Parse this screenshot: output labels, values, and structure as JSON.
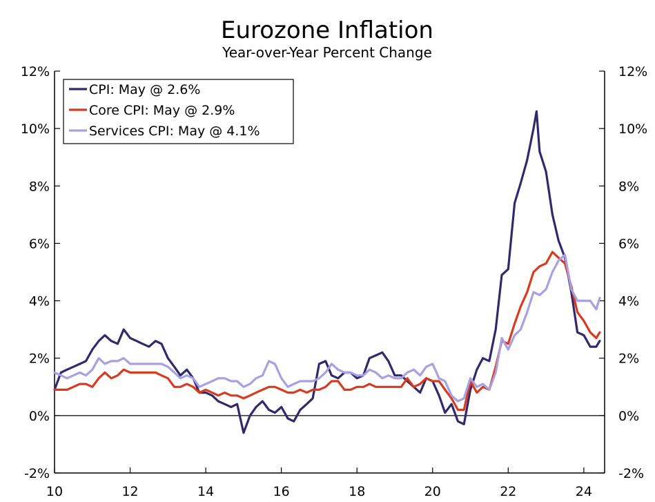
{
  "chart_data": {
    "type": "line",
    "title": "Eurozone Inflation",
    "subtitle": "Year-over-Year Percent Change",
    "xlabel": "",
    "ylabel": "",
    "xlim": [
      2010.0,
      2024.55
    ],
    "ylim": [
      -2,
      12
    ],
    "grid": false,
    "legend_position": "top-left",
    "x_ticks": [
      {
        "value": 2010,
        "label": "10"
      },
      {
        "value": 2012,
        "label": "12"
      },
      {
        "value": 2014,
        "label": "14"
      },
      {
        "value": 2016,
        "label": "16"
      },
      {
        "value": 2018,
        "label": "18"
      },
      {
        "value": 2020,
        "label": "20"
      },
      {
        "value": 2022,
        "label": "22"
      },
      {
        "value": 2024,
        "label": "24"
      }
    ],
    "y_ticks": [
      {
        "value": 12,
        "label": "12%"
      },
      {
        "value": 10,
        "label": "10%"
      },
      {
        "value": 8,
        "label": "8%"
      },
      {
        "value": 6,
        "label": "6%"
      },
      {
        "value": 4,
        "label": "4%"
      },
      {
        "value": 2,
        "label": "2%"
      },
      {
        "value": 0,
        "label": "0%"
      },
      {
        "value": -2,
        "label": "-2%"
      }
    ],
    "series": [
      {
        "name": "CPI: May @ 2.6%",
        "color": "#2f2a6b",
        "points": [
          [
            2010.0,
            0.9
          ],
          [
            2010.17,
            1.5
          ],
          [
            2010.33,
            1.6
          ],
          [
            2010.5,
            1.7
          ],
          [
            2010.67,
            1.8
          ],
          [
            2010.83,
            1.9
          ],
          [
            2011.0,
            2.3
          ],
          [
            2011.17,
            2.6
          ],
          [
            2011.33,
            2.8
          ],
          [
            2011.5,
            2.6
          ],
          [
            2011.67,
            2.5
          ],
          [
            2011.83,
            3.0
          ],
          [
            2012.0,
            2.7
          ],
          [
            2012.17,
            2.6
          ],
          [
            2012.33,
            2.5
          ],
          [
            2012.5,
            2.4
          ],
          [
            2012.67,
            2.6
          ],
          [
            2012.83,
            2.5
          ],
          [
            2013.0,
            2.0
          ],
          [
            2013.17,
            1.7
          ],
          [
            2013.33,
            1.4
          ],
          [
            2013.5,
            1.6
          ],
          [
            2013.67,
            1.3
          ],
          [
            2013.83,
            0.8
          ],
          [
            2014.0,
            0.8
          ],
          [
            2014.17,
            0.7
          ],
          [
            2014.33,
            0.5
          ],
          [
            2014.5,
            0.4
          ],
          [
            2014.67,
            0.3
          ],
          [
            2014.83,
            0.4
          ],
          [
            2015.0,
            -0.6
          ],
          [
            2015.17,
            0.0
          ],
          [
            2015.33,
            0.3
          ],
          [
            2015.5,
            0.5
          ],
          [
            2015.67,
            0.2
          ],
          [
            2015.83,
            0.1
          ],
          [
            2016.0,
            0.3
          ],
          [
            2016.17,
            -0.1
          ],
          [
            2016.33,
            -0.2
          ],
          [
            2016.5,
            0.2
          ],
          [
            2016.67,
            0.4
          ],
          [
            2016.83,
            0.6
          ],
          [
            2017.0,
            1.8
          ],
          [
            2017.17,
            1.9
          ],
          [
            2017.33,
            1.4
          ],
          [
            2017.5,
            1.3
          ],
          [
            2017.67,
            1.5
          ],
          [
            2017.83,
            1.5
          ],
          [
            2018.0,
            1.3
          ],
          [
            2018.17,
            1.4
          ],
          [
            2018.33,
            2.0
          ],
          [
            2018.5,
            2.1
          ],
          [
            2018.67,
            2.2
          ],
          [
            2018.83,
            1.9
          ],
          [
            2019.0,
            1.4
          ],
          [
            2019.17,
            1.4
          ],
          [
            2019.33,
            1.2
          ],
          [
            2019.5,
            1.0
          ],
          [
            2019.67,
            0.8
          ],
          [
            2019.83,
            1.3
          ],
          [
            2020.0,
            1.2
          ],
          [
            2020.17,
            0.7
          ],
          [
            2020.33,
            0.1
          ],
          [
            2020.5,
            0.4
          ],
          [
            2020.67,
            -0.2
          ],
          [
            2020.83,
            -0.3
          ],
          [
            2021.0,
            0.9
          ],
          [
            2021.17,
            1.6
          ],
          [
            2021.33,
            2.0
          ],
          [
            2021.5,
            1.9
          ],
          [
            2021.67,
            3.0
          ],
          [
            2021.83,
            4.9
          ],
          [
            2022.0,
            5.1
          ],
          [
            2022.17,
            7.4
          ],
          [
            2022.33,
            8.1
          ],
          [
            2022.5,
            8.9
          ],
          [
            2022.67,
            10.0
          ],
          [
            2022.75,
            10.6
          ],
          [
            2022.83,
            9.2
          ],
          [
            2023.0,
            8.5
          ],
          [
            2023.17,
            7.0
          ],
          [
            2023.33,
            6.1
          ],
          [
            2023.5,
            5.5
          ],
          [
            2023.67,
            4.3
          ],
          [
            2023.83,
            2.9
          ],
          [
            2024.0,
            2.8
          ],
          [
            2024.17,
            2.4
          ],
          [
            2024.33,
            2.4
          ],
          [
            2024.42,
            2.6
          ]
        ]
      },
      {
        "name": "Core CPI: May @ 2.9%",
        "color": "#d83a20",
        "points": [
          [
            2010.0,
            0.9
          ],
          [
            2010.17,
            0.9
          ],
          [
            2010.33,
            0.9
          ],
          [
            2010.5,
            1.0
          ],
          [
            2010.67,
            1.1
          ],
          [
            2010.83,
            1.1
          ],
          [
            2011.0,
            1.0
          ],
          [
            2011.17,
            1.3
          ],
          [
            2011.33,
            1.5
          ],
          [
            2011.5,
            1.3
          ],
          [
            2011.67,
            1.4
          ],
          [
            2011.83,
            1.6
          ],
          [
            2012.0,
            1.5
          ],
          [
            2012.17,
            1.5
          ],
          [
            2012.33,
            1.5
          ],
          [
            2012.5,
            1.5
          ],
          [
            2012.67,
            1.5
          ],
          [
            2012.83,
            1.4
          ],
          [
            2013.0,
            1.3
          ],
          [
            2013.17,
            1.0
          ],
          [
            2013.33,
            1.0
          ],
          [
            2013.5,
            1.1
          ],
          [
            2013.67,
            1.0
          ],
          [
            2013.83,
            0.8
          ],
          [
            2014.0,
            0.9
          ],
          [
            2014.17,
            0.8
          ],
          [
            2014.33,
            0.7
          ],
          [
            2014.5,
            0.8
          ],
          [
            2014.67,
            0.7
          ],
          [
            2014.83,
            0.7
          ],
          [
            2015.0,
            0.6
          ],
          [
            2015.17,
            0.7
          ],
          [
            2015.33,
            0.8
          ],
          [
            2015.5,
            0.9
          ],
          [
            2015.67,
            1.0
          ],
          [
            2015.83,
            1.0
          ],
          [
            2016.0,
            0.9
          ],
          [
            2016.17,
            0.8
          ],
          [
            2016.33,
            0.8
          ],
          [
            2016.5,
            0.9
          ],
          [
            2016.67,
            0.8
          ],
          [
            2016.83,
            0.9
          ],
          [
            2017.0,
            0.9
          ],
          [
            2017.17,
            1.0
          ],
          [
            2017.33,
            1.2
          ],
          [
            2017.5,
            1.2
          ],
          [
            2017.67,
            0.9
          ],
          [
            2017.83,
            0.9
          ],
          [
            2018.0,
            1.0
          ],
          [
            2018.17,
            1.0
          ],
          [
            2018.33,
            1.1
          ],
          [
            2018.5,
            1.0
          ],
          [
            2018.67,
            1.0
          ],
          [
            2018.83,
            1.0
          ],
          [
            2019.0,
            1.0
          ],
          [
            2019.17,
            1.0
          ],
          [
            2019.33,
            1.3
          ],
          [
            2019.5,
            1.0
          ],
          [
            2019.67,
            1.1
          ],
          [
            2019.83,
            1.3
          ],
          [
            2020.0,
            1.2
          ],
          [
            2020.17,
            1.2
          ],
          [
            2020.33,
            0.9
          ],
          [
            2020.5,
            0.6
          ],
          [
            2020.67,
            0.2
          ],
          [
            2020.83,
            0.2
          ],
          [
            2021.0,
            1.2
          ],
          [
            2021.17,
            0.8
          ],
          [
            2021.33,
            1.0
          ],
          [
            2021.5,
            0.9
          ],
          [
            2021.67,
            1.7
          ],
          [
            2021.83,
            2.6
          ],
          [
            2022.0,
            2.5
          ],
          [
            2022.17,
            3.2
          ],
          [
            2022.33,
            3.8
          ],
          [
            2022.5,
            4.3
          ],
          [
            2022.67,
            5.0
          ],
          [
            2022.83,
            5.2
          ],
          [
            2023.0,
            5.3
          ],
          [
            2023.17,
            5.7
          ],
          [
            2023.33,
            5.5
          ],
          [
            2023.5,
            5.3
          ],
          [
            2023.67,
            4.5
          ],
          [
            2023.83,
            3.6
          ],
          [
            2024.0,
            3.3
          ],
          [
            2024.17,
            2.9
          ],
          [
            2024.33,
            2.7
          ],
          [
            2024.42,
            2.9
          ]
        ]
      },
      {
        "name": "Services CPI: May @ 4.1%",
        "color": "#a99fe3",
        "points": [
          [
            2010.0,
            1.5
          ],
          [
            2010.17,
            1.4
          ],
          [
            2010.33,
            1.3
          ],
          [
            2010.5,
            1.4
          ],
          [
            2010.67,
            1.5
          ],
          [
            2010.83,
            1.4
          ],
          [
            2011.0,
            1.6
          ],
          [
            2011.17,
            2.0
          ],
          [
            2011.33,
            1.8
          ],
          [
            2011.5,
            1.9
          ],
          [
            2011.67,
            1.9
          ],
          [
            2011.83,
            2.0
          ],
          [
            2012.0,
            1.8
          ],
          [
            2012.17,
            1.8
          ],
          [
            2012.33,
            1.8
          ],
          [
            2012.5,
            1.8
          ],
          [
            2012.67,
            1.8
          ],
          [
            2012.83,
            1.8
          ],
          [
            2013.0,
            1.7
          ],
          [
            2013.17,
            1.5
          ],
          [
            2013.33,
            1.3
          ],
          [
            2013.5,
            1.4
          ],
          [
            2013.67,
            1.3
          ],
          [
            2013.83,
            1.0
          ],
          [
            2014.0,
            1.1
          ],
          [
            2014.17,
            1.2
          ],
          [
            2014.33,
            1.3
          ],
          [
            2014.5,
            1.3
          ],
          [
            2014.67,
            1.2
          ],
          [
            2014.83,
            1.2
          ],
          [
            2015.0,
            1.0
          ],
          [
            2015.17,
            1.1
          ],
          [
            2015.33,
            1.3
          ],
          [
            2015.5,
            1.4
          ],
          [
            2015.67,
            1.9
          ],
          [
            2015.83,
            1.8
          ],
          [
            2016.0,
            1.3
          ],
          [
            2016.17,
            1.0
          ],
          [
            2016.33,
            1.1
          ],
          [
            2016.5,
            1.2
          ],
          [
            2016.67,
            1.2
          ],
          [
            2016.83,
            1.2
          ],
          [
            2017.0,
            1.3
          ],
          [
            2017.17,
            1.5
          ],
          [
            2017.33,
            1.8
          ],
          [
            2017.5,
            1.6
          ],
          [
            2017.67,
            1.5
          ],
          [
            2017.83,
            1.5
          ],
          [
            2018.0,
            1.4
          ],
          [
            2018.17,
            1.4
          ],
          [
            2018.33,
            1.6
          ],
          [
            2018.5,
            1.5
          ],
          [
            2018.67,
            1.3
          ],
          [
            2018.83,
            1.4
          ],
          [
            2019.0,
            1.3
          ],
          [
            2019.17,
            1.3
          ],
          [
            2019.33,
            1.5
          ],
          [
            2019.5,
            1.6
          ],
          [
            2019.67,
            1.4
          ],
          [
            2019.83,
            1.7
          ],
          [
            2020.0,
            1.8
          ],
          [
            2020.17,
            1.3
          ],
          [
            2020.33,
            1.2
          ],
          [
            2020.5,
            0.7
          ],
          [
            2020.67,
            0.5
          ],
          [
            2020.83,
            0.6
          ],
          [
            2021.0,
            1.3
          ],
          [
            2021.17,
            1.0
          ],
          [
            2021.33,
            1.1
          ],
          [
            2021.5,
            0.9
          ],
          [
            2021.67,
            1.5
          ],
          [
            2021.83,
            2.7
          ],
          [
            2022.0,
            2.3
          ],
          [
            2022.17,
            2.8
          ],
          [
            2022.33,
            3.0
          ],
          [
            2022.5,
            3.6
          ],
          [
            2022.67,
            4.3
          ],
          [
            2022.83,
            4.2
          ],
          [
            2023.0,
            4.4
          ],
          [
            2023.17,
            5.0
          ],
          [
            2023.33,
            5.4
          ],
          [
            2023.5,
            5.6
          ],
          [
            2023.67,
            4.4
          ],
          [
            2023.83,
            4.0
          ],
          [
            2024.0,
            4.0
          ],
          [
            2024.17,
            4.0
          ],
          [
            2024.33,
            3.7
          ],
          [
            2024.42,
            4.1
          ]
        ]
      }
    ]
  }
}
